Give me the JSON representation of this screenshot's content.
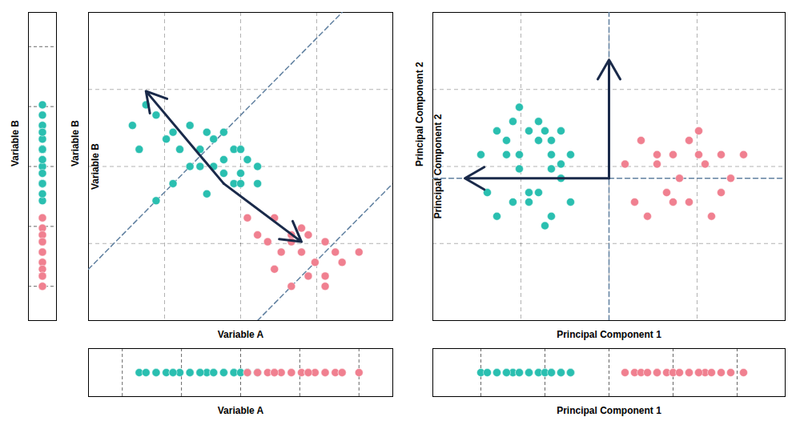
{
  "chart_data": [
    {
      "type": "strip",
      "ylabel": "Variable B",
      "ylim": [
        1.5,
        10.5
      ],
      "yticks": [
        2.5,
        4.25,
        6,
        7.75,
        9.5
      ],
      "grid": true,
      "tick_labels": false,
      "series": [
        {
          "color": "#2abfb0",
          "values": [
            7.8,
            7.2,
            7.5,
            7.0,
            6.8,
            7.2,
            6.5,
            7.0,
            6.5,
            6.8,
            7.0,
            6.0,
            6.5,
            6.0,
            6.5,
            5.8,
            6.2,
            5.5,
            6.0,
            5.5,
            6.5,
            5.5,
            5.0,
            6.0,
            5.2,
            6.2,
            5.8,
            5.5
          ]
        },
        {
          "color": "#f08090",
          "values": [
            4.5,
            4.0,
            4.5,
            3.8,
            4.0,
            3.5,
            4.2,
            3.8,
            4.0,
            3.5,
            3.8,
            3.2,
            3.5,
            2.8,
            3.2,
            3.5,
            3.0,
            2.5,
            2.8,
            2.5
          ]
        }
      ]
    },
    {
      "type": "scatter",
      "xlabel": "Variable A",
      "ylabel": "Variable B",
      "xlim": [
        1.5,
        10.5
      ],
      "ylim": [
        1.5,
        10.5
      ],
      "xticks": [
        1.5,
        3.75,
        6,
        8.25,
        10.5
      ],
      "yticks": [
        1.5,
        3.75,
        6,
        8.25,
        10.5
      ],
      "grid": true,
      "tick_labels": false,
      "annotations": [
        {
          "text": "Variable B",
          "x": 1.6,
          "y": 6.0
        }
      ],
      "series": [
        {
          "color": "#2abfb0",
          "x": [
            3.2,
            2.8,
            3.5,
            4.0,
            3.8,
            4.5,
            4.2,
            5.0,
            4.8,
            5.2,
            5.5,
            4.5,
            5.8,
            5.2,
            6.0,
            5.5,
            6.2,
            5.8,
            6.5,
            6.0,
            3.0,
            4.0,
            3.5,
            4.8,
            5.0,
            5.5,
            6.0,
            6.5
          ],
          "values": [
            7.8,
            7.2,
            7.5,
            7.0,
            6.8,
            7.2,
            6.5,
            7.0,
            6.5,
            6.8,
            7.0,
            6.0,
            6.5,
            6.0,
            6.5,
            5.8,
            6.2,
            5.5,
            6.0,
            5.5,
            6.5,
            5.5,
            5.0,
            6.0,
            5.2,
            6.2,
            5.8,
            5.5
          ]
        },
        {
          "color": "#f08090",
          "x": [
            6.2,
            6.5,
            7.0,
            6.8,
            7.5,
            7.2,
            7.8,
            7.5,
            8.0,
            7.8,
            8.5,
            8.2,
            8.8,
            8.5,
            9.0,
            9.5,
            7.0,
            7.5,
            8.0,
            8.5
          ],
          "values": [
            4.5,
            4.0,
            4.5,
            3.8,
            4.0,
            3.5,
            4.2,
            3.8,
            4.0,
            3.5,
            3.8,
            3.2,
            3.5,
            2.8,
            3.2,
            3.5,
            3.0,
            2.5,
            2.8,
            2.5
          ]
        },
        {
          "type": "line",
          "line_style": "dashed",
          "color": "#6080a0",
          "x": [
            1.5,
            9
          ],
          "values": [
            3,
            10.5
          ]
        },
        {
          "type": "line",
          "line_style": "dashed",
          "color": "#6080a0",
          "x": [
            6.5,
            10.5
          ],
          "values": [
            1.5,
            5.5
          ]
        },
        {
          "type": "arrow",
          "color": "#1a2a4a",
          "x": [
            5.5,
            3.2
          ],
          "values": [
            5.5,
            8.2
          ]
        },
        {
          "type": "arrow",
          "color": "#1a2a4a",
          "x": [
            5.5,
            7.8
          ],
          "values": [
            5.5,
            3.8
          ]
        }
      ]
    },
    {
      "type": "strip",
      "xlabel": "Variable A",
      "xlim": [
        1.5,
        10.5
      ],
      "xticks": [
        2.5,
        4.25,
        6,
        7.75,
        9.5
      ],
      "grid": true,
      "tick_labels": false,
      "series": [
        {
          "color": "#2abfb0",
          "values": [
            3.0,
            3.2,
            3.5,
            3.8,
            4.0,
            4.2,
            4.5,
            4.5,
            4.8,
            5.0,
            5.0,
            5.2,
            5.5,
            5.5,
            5.8,
            5.8,
            6.0,
            6.0,
            6.2,
            6.5,
            3.5,
            4.0,
            4.8,
            5.2,
            5.8,
            6.0,
            6.2,
            6.5
          ]
        },
        {
          "color": "#f08090",
          "values": [
            6.2,
            6.5,
            6.8,
            7.0,
            7.0,
            7.2,
            7.5,
            7.5,
            7.8,
            8.0,
            8.0,
            8.2,
            8.5,
            8.5,
            8.8,
            9.0,
            9.0,
            9.5,
            7.0,
            8.0
          ]
        }
      ]
    },
    {
      "type": "scatter",
      "xlabel": "Principal Component 1",
      "ylabel": "Principal Component 2",
      "xlim": [
        -5.5,
        5.5
      ],
      "ylim": [
        -3.0,
        3.5
      ],
      "xticks": [
        -5.5,
        -2.75,
        0,
        2.75,
        5.5
      ],
      "yticks": [
        -3,
        -1.375,
        0.25,
        1.875,
        3.5
      ],
      "grid": true,
      "tick_labels": false,
      "annotations": [
        {
          "text": "Principal Component 2",
          "x": -5.45,
          "y": 0.25
        }
      ],
      "series": [
        {
          "color": "#2abfb0",
          "x": [
            -4.0,
            -3.5,
            -3.8,
            -3.2,
            -3.0,
            -2.8,
            -3.5,
            -2.5,
            -3.0,
            -2.2,
            -2.8,
            -2.0,
            -2.5,
            -1.8,
            -2.2,
            -1.5,
            -1.8,
            -1.2,
            -2.0,
            -1.5,
            -3.2,
            -2.5,
            -1.8,
            -2.8,
            -2.2,
            -1.5,
            -1.2,
            -1.8
          ],
          "values": [
            0.5,
            1.0,
            -0.3,
            0.8,
            1.2,
            0.5,
            -0.8,
            1.0,
            -0.5,
            0.8,
            0.2,
            1.0,
            -0.3,
            0.5,
            1.2,
            0.0,
            0.8,
            0.5,
            -1.0,
            0.3,
            0.5,
            -0.5,
            -0.8,
            1.5,
            -0.3,
            1.0,
            -0.5,
            0.2
          ]
        },
        {
          "color": "#f08090",
          "x": [
            0.5,
            1.0,
            0.8,
            1.5,
            1.2,
            2.0,
            1.8,
            2.5,
            2.2,
            2.8,
            2.5,
            3.0,
            3.5,
            3.2,
            3.8,
            4.2,
            1.5,
            2.0,
            2.8,
            3.5
          ],
          "values": [
            0.3,
            0.8,
            -0.5,
            0.5,
            -0.8,
            0.5,
            -0.3,
            0.8,
            0.0,
            0.5,
            -0.5,
            0.3,
            0.5,
            -0.8,
            0.0,
            0.5,
            0.3,
            -0.5,
            1.0,
            -0.3
          ]
        },
        {
          "type": "line",
          "line_style": "dashed",
          "color": "#6080a0",
          "x": [
            0,
            0
          ],
          "values": [
            -3.0,
            3.5
          ]
        },
        {
          "type": "line",
          "line_style": "dashed",
          "color": "#6080a0",
          "x": [
            -5.5,
            5.5
          ],
          "values": [
            0,
            0
          ]
        },
        {
          "type": "arrow",
          "color": "#1a2a4a",
          "x": [
            0.0,
            -4.5
          ],
          "values": [
            0.0,
            0.0
          ]
        },
        {
          "type": "arrow",
          "color": "#1a2a4a",
          "x": [
            0.0,
            0.0
          ],
          "values": [
            0.0,
            2.5
          ]
        }
      ]
    },
    {
      "type": "strip",
      "xlabel": "Principal Component 1",
      "xlim": [
        -5.5,
        5.5
      ],
      "xticks": [
        -4,
        -2,
        0,
        2,
        4
      ],
      "grid": true,
      "tick_labels": false,
      "series": [
        {
          "color": "#2abfb0",
          "values": [
            -4.0,
            -3.8,
            -3.5,
            -3.2,
            -3.0,
            -3.0,
            -2.8,
            -2.5,
            -2.5,
            -2.2,
            -2.0,
            -2.0,
            -1.8,
            -1.8,
            -1.5,
            -1.5,
            -1.2,
            -1.2,
            -3.5,
            -2.8,
            -2.2,
            -1.8,
            -1.5,
            -2.5,
            -3.2,
            -2.0,
            -1.8,
            -1.2
          ]
        },
        {
          "color": "#f08090",
          "values": [
            0.5,
            0.8,
            1.0,
            1.2,
            1.5,
            1.5,
            1.8,
            2.0,
            2.0,
            2.2,
            2.5,
            2.5,
            2.8,
            3.0,
            3.2,
            3.5,
            3.8,
            4.2,
            1.5,
            2.8
          ]
        }
      ]
    }
  ]
}
